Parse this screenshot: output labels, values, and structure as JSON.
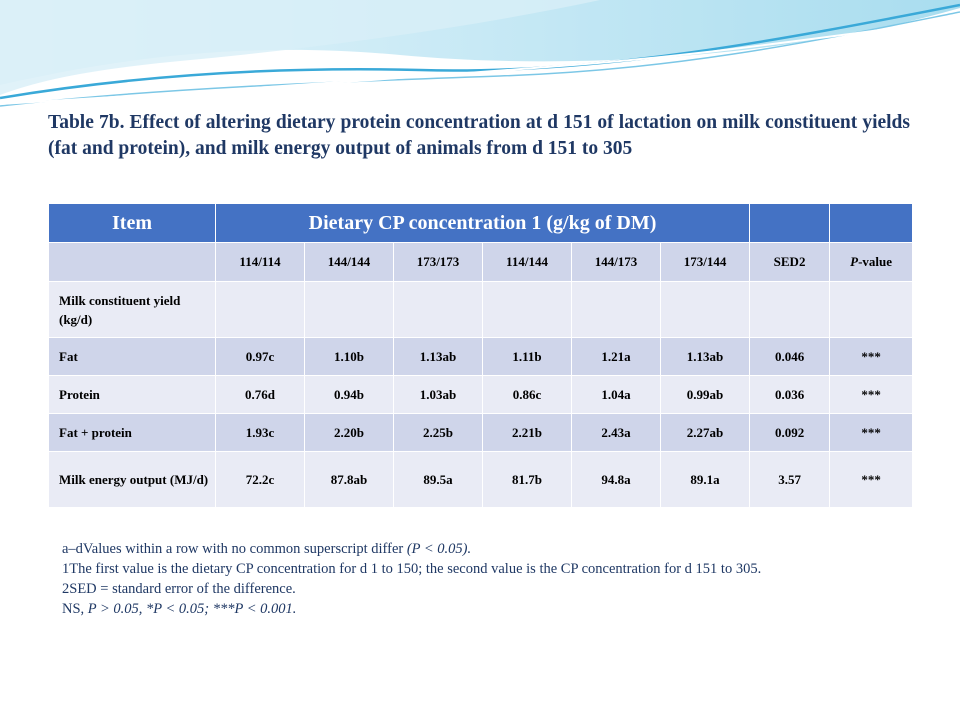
{
  "title": "Table 7b. Effect of altering dietary protein concentration at d 151 of lactation on milk constituent yields (fat and protein), and milk energy output of animals from d 151 to 305",
  "table": {
    "header": {
      "item": "Item",
      "group": "Dietary CP concentration 1 (g/kg of DM)"
    },
    "columns": [
      "114/114",
      "144/144",
      "173/173",
      "114/144",
      "144/173",
      "173/144",
      "SED2"
    ],
    "pvalue_header": {
      "p": "P",
      "rest": "-value"
    },
    "rows": [
      {
        "label": "Milk constituent yield (kg/d)",
        "values": [
          "",
          "",
          "",
          "",
          "",
          "",
          "",
          ""
        ]
      },
      {
        "label": "Fat",
        "values": [
          "0.97c",
          "1.10b",
          "1.13ab",
          "1.11b",
          "1.21a",
          "1.13ab",
          "0.046",
          "***"
        ]
      },
      {
        "label": "Protein",
        "values": [
          "0.76d",
          "0.94b",
          "1.03ab",
          "0.86c",
          "1.04a",
          "0.99ab",
          "0.036",
          "***"
        ]
      },
      {
        "label": "Fat + protein",
        "values": [
          "1.93c",
          "2.20b",
          "2.25b",
          "2.21b",
          "2.43a",
          "2.27ab",
          "0.092",
          "***"
        ]
      },
      {
        "label": "Milk energy output (MJ/d)",
        "values": [
          "72.2c",
          "87.8ab",
          "89.5a",
          "81.7b",
          "94.8a",
          "89.1a",
          "3.57",
          "***"
        ]
      }
    ]
  },
  "notes": {
    "n1_text": "a–dValues within a row with no common superscript differ ",
    "n1_italic": "(P < 0.05).",
    "n2": "1The first value is the dietary CP concentration for d 1 to 150; the second value is the CP concentration for d 151 to 305.",
    "n3": "2SED = standard error of the difference.",
    "n4_text": "NS, ",
    "n4_italic": "P > 0.05, *P < 0.05; ***P < 0.001."
  },
  "colors": {
    "header_bg": "#4472c4",
    "row_dark": "#cfd5ea",
    "row_light": "#e9ebf5",
    "text_navy": "#1f3864"
  }
}
